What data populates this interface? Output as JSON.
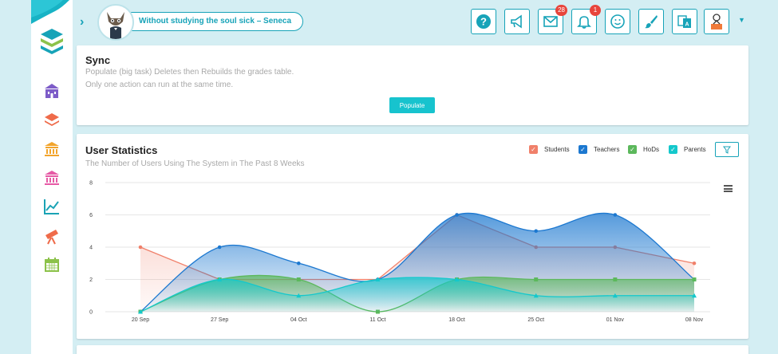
{
  "header": {
    "quote": "Without studying the soul sick – Seneca",
    "mail_badge": "28",
    "notification_badge": "1"
  },
  "sidebar": {
    "items": [
      {
        "icon": "school-building-icon",
        "color": "#7d5cc8"
      },
      {
        "icon": "layers-icon",
        "color": "#ef6b4a"
      },
      {
        "icon": "institution-icon",
        "color": "#f2a42b"
      },
      {
        "icon": "institution-icon",
        "color": "#e65aa5"
      },
      {
        "icon": "line-chart-icon",
        "color": "#1aa3b5"
      },
      {
        "icon": "telescope-icon",
        "color": "#ef6b4a"
      },
      {
        "icon": "calendar-icon",
        "color": "#8cc24a"
      }
    ]
  },
  "sync": {
    "title": "Sync",
    "line1": "Populate (big task) Deletes then Rebuilds the grades table.",
    "line2": "Only one action can run at the same time.",
    "button": "Populate"
  },
  "stats": {
    "title": "User Statistics",
    "subtitle": "The Number of Users Using The System in The Past 8 Weeks"
  },
  "chart_data": {
    "type": "area",
    "categories": [
      "20 Sep",
      "27 Sep",
      "04 Oct",
      "11 Oct",
      "18 Oct",
      "25 Oct",
      "01 Nov",
      "08 Nov"
    ],
    "ylim": [
      0,
      8
    ],
    "yticks": [
      "0",
      "2",
      "4",
      "6",
      "8"
    ],
    "legend_position": "top-right",
    "grid": true,
    "series": [
      {
        "name": "Students",
        "color": "#f0806a",
        "values": [
          4,
          2,
          2,
          2,
          6,
          4,
          4,
          3
        ]
      },
      {
        "name": "Teachers",
        "color": "#1c78d0",
        "values": [
          0,
          4,
          3,
          2,
          6,
          5,
          6,
          2
        ]
      },
      {
        "name": "HoDs",
        "color": "#5cb85c",
        "values": [
          0,
          2,
          2,
          0,
          2,
          2,
          2,
          2
        ]
      },
      {
        "name": "Parents",
        "color": "#14c8cc",
        "values": [
          0,
          2,
          1,
          2,
          2,
          1,
          1,
          1
        ]
      }
    ]
  }
}
